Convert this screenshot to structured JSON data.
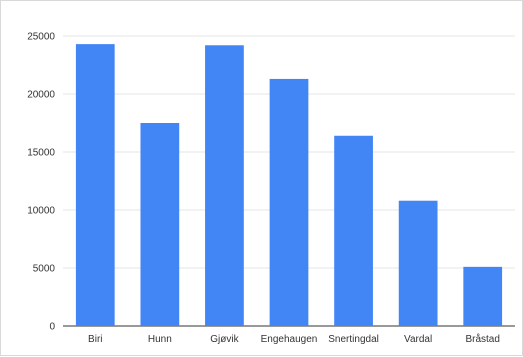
{
  "chart_data": {
    "type": "bar",
    "categories": [
      "Biri",
      "Hunn",
      "Gjøvik",
      "Engehaugen",
      "Snertingdal",
      "Vardal",
      "Bråstad"
    ],
    "values": [
      24300,
      17500,
      24200,
      21300,
      16400,
      10800,
      5100
    ],
    "ylim": [
      0,
      25000
    ],
    "yticks": [
      0,
      5000,
      10000,
      15000,
      20000,
      25000
    ],
    "grid": true,
    "legend": "none",
    "bar_color": "#4285f4"
  }
}
